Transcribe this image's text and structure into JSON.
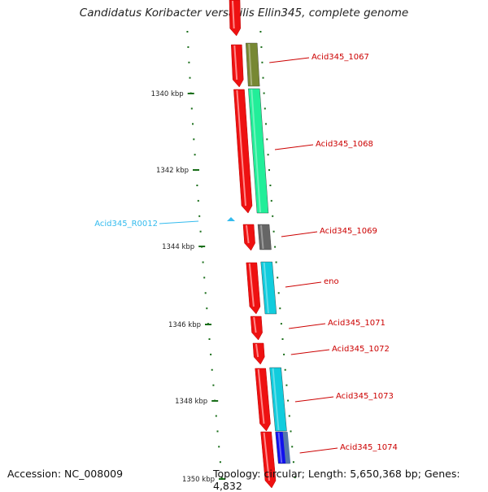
{
  "title": "Candidatus Koribacter versatilis Ellin345, complete genome",
  "footer": {
    "accession": "Accession: NC_008009",
    "summary": "Topology: circular; Length: 5,650,368 bp; Genes: 4,832"
  },
  "colors": {
    "backbone": "#888888",
    "tick": "#1a6e1a",
    "cds_strand": "#ee1111",
    "gene_label": "#cc0000",
    "rna_label": "#33bbee"
  },
  "ticks": [
    {
      "label": "1340 kbp",
      "kbp": 1340
    },
    {
      "label": "1342 kbp",
      "kbp": 1342
    },
    {
      "label": "1344 kbp",
      "kbp": 1344
    },
    {
      "label": "1346 kbp",
      "kbp": 1346
    },
    {
      "label": "1348 kbp",
      "kbp": 1348
    },
    {
      "label": "1350 kbp",
      "kbp": 1350
    }
  ],
  "genes": [
    {
      "label": "Acid345_1067",
      "color": "#778833"
    },
    {
      "label": "Acid345_1068",
      "color": "#22ee99"
    },
    {
      "label": "Acid345_1069",
      "color": "#666666"
    },
    {
      "label": "eno",
      "color": "#11ccdd"
    },
    {
      "label": "Acid345_1071",
      "color": ""
    },
    {
      "label": "Acid345_1072",
      "color": ""
    },
    {
      "label": "Acid345_1073",
      "color": "#11ccdd"
    },
    {
      "label": "Acid345_1074",
      "color": "#1111ee"
    }
  ],
  "rna": {
    "label": "Acid345_R0012",
    "color": "#33bbee"
  }
}
